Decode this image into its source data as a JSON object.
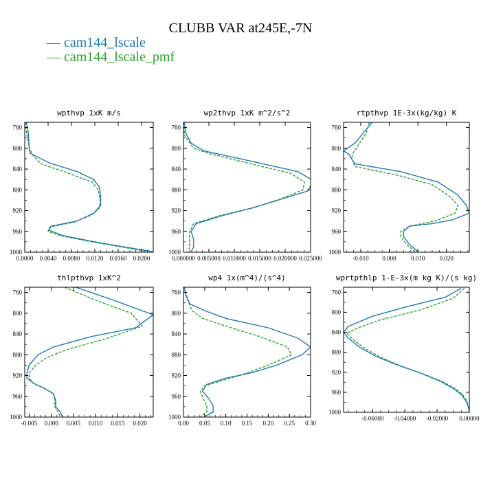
{
  "title": "CLUBB VAR at245E,-7N",
  "legend": [
    {
      "label": "cam144_lscale",
      "color": "#1f77b4"
    },
    {
      "label": "cam144_lscale_pmf",
      "color": "#2ca02c"
    }
  ],
  "chart_data": [
    {
      "type": "line",
      "title": "wpthvp  1xK m/s",
      "xlim": [
        0,
        0.022
      ],
      "xticks": [
        0,
        0.004,
        0.008,
        0.012,
        0.016,
        0.02
      ],
      "xtick_labels": [
        "0.0000",
        "0.0040",
        "0.0080",
        "0.0120",
        "0.0160",
        "0.0200"
      ],
      "ylim": [
        750,
        1000
      ],
      "yticks": [
        760,
        800,
        840,
        880,
        920,
        960,
        1000
      ],
      "series": [
        {
          "name": "cam144_lscale",
          "points": [
            [
              0.0003,
              750
            ],
            [
              0.0006,
              770
            ],
            [
              0.0008,
              805
            ],
            [
              0.001,
              810
            ],
            [
              0.0042,
              828
            ],
            [
              0.009,
              845
            ],
            [
              0.0118,
              860
            ],
            [
              0.0128,
              875
            ],
            [
              0.013,
              895
            ],
            [
              0.013,
              910
            ],
            [
              0.0118,
              925
            ],
            [
              0.009,
              940
            ],
            [
              0.0045,
              950
            ],
            [
              0.0042,
              958
            ],
            [
              0.0065,
              968
            ],
            [
              0.011,
              978
            ],
            [
              0.016,
              988
            ],
            [
              0.022,
              999
            ]
          ]
        },
        {
          "name": "cam144_lscale_pmf",
          "points": [
            [
              0.0001,
              750
            ],
            [
              0.0003,
              770
            ],
            [
              0.0008,
              800
            ],
            [
              0.0015,
              815
            ],
            [
              0.0028,
              830
            ],
            [
              0.0075,
              848
            ],
            [
              0.0115,
              865
            ],
            [
              0.0126,
              880
            ],
            [
              0.0129,
              900
            ],
            [
              0.0128,
              915
            ],
            [
              0.0115,
              928
            ],
            [
              0.0085,
              942
            ],
            [
              0.0042,
              952
            ],
            [
              0.004,
              960
            ],
            [
              0.006,
              968
            ],
            [
              0.0105,
              978
            ],
            [
              0.0155,
              988
            ],
            [
              0.021,
              999
            ]
          ]
        }
      ]
    },
    {
      "type": "line",
      "title": "wp2thvp  1xK m^2/s^2",
      "xlim": [
        0,
        0.025
      ],
      "xticks": [
        0,
        0.005,
        0.01,
        0.015,
        0.02,
        0.025
      ],
      "xtick_labels": [
        "0.000000",
        "0.005000",
        "0.010000",
        "0.015000",
        "0.020000",
        "0.025000"
      ],
      "ylim": [
        750,
        1000
      ],
      "yticks": [
        760,
        800,
        840,
        880,
        920,
        960,
        1000
      ],
      "series": [
        {
          "name": "cam144_lscale",
          "points": [
            [
              0.0002,
              750
            ],
            [
              0.0004,
              770
            ],
            [
              0.0015,
              790
            ],
            [
              0.004,
              805
            ],
            [
              0.012,
              822
            ],
            [
              0.0225,
              845
            ],
            [
              0.0255,
              862
            ],
            [
              0.0245,
              882
            ],
            [
              0.0185,
              900
            ],
            [
              0.0135,
              915
            ],
            [
              0.0075,
              930
            ],
            [
              0.0025,
              945
            ],
            [
              0.0015,
              960
            ],
            [
              0.002,
              975
            ],
            [
              0.002,
              990
            ],
            [
              0.0015,
              999
            ]
          ]
        },
        {
          "name": "cam144_lscale_pmf",
          "points": [
            [
              0.0001,
              750
            ],
            [
              0.0002,
              775
            ],
            [
              0.002,
              800
            ],
            [
              0.005,
              810
            ],
            [
              0.0125,
              828
            ],
            [
              0.021,
              848
            ],
            [
              0.0238,
              865
            ],
            [
              0.0235,
              880
            ],
            [
              0.019,
              898
            ],
            [
              0.0135,
              915
            ],
            [
              0.007,
              930
            ],
            [
              0.002,
              945
            ],
            [
              0.0012,
              960
            ],
            [
              0.0012,
              975
            ],
            [
              0.0012,
              990
            ],
            [
              0.001,
              999
            ]
          ]
        }
      ]
    },
    {
      "type": "line",
      "title": "rtpthvp  1E-3x(kg/kg) K",
      "xlim": [
        -0.016,
        0.028
      ],
      "xticks": [
        -0.01,
        0,
        0.01,
        0.02
      ],
      "xtick_labels": [
        "-0.010",
        "0.000",
        "0.010",
        "0.020"
      ],
      "ylim": [
        750,
        1000
      ],
      "yticks": [
        760,
        800,
        840,
        880,
        920,
        960,
        1000
      ],
      "series": [
        {
          "name": "cam144_lscale",
          "points": [
            [
              -0.006,
              750
            ],
            [
              -0.009,
              770
            ],
            [
              -0.012,
              790
            ],
            [
              -0.016,
              805
            ],
            [
              -0.014,
              812
            ],
            [
              -0.013,
              822
            ],
            [
              -0.012,
              830
            ],
            [
              0.004,
              845
            ],
            [
              0.017,
              865
            ],
            [
              0.024,
              890
            ],
            [
              0.027,
              910
            ],
            [
              0.028,
              925
            ],
            [
              0.022,
              938
            ],
            [
              0.015,
              945
            ],
            [
              0.007,
              950
            ],
            [
              0.005,
              960
            ],
            [
              0.005,
              970
            ],
            [
              0.007,
              985
            ],
            [
              0.01,
              999
            ]
          ]
        },
        {
          "name": "cam144_lscale_pmf",
          "points": [
            [
              -0.007,
              750
            ],
            [
              -0.008,
              770
            ],
            [
              -0.011,
              795
            ],
            [
              -0.013,
              812
            ],
            [
              -0.013,
              822
            ],
            [
              -0.012,
              835
            ],
            [
              0.003,
              852
            ],
            [
              0.015,
              870
            ],
            [
              0.021,
              892
            ],
            [
              0.024,
              910
            ],
            [
              0.023,
              925
            ],
            [
              0.016,
              940
            ],
            [
              0.007,
              950
            ],
            [
              0.004,
              960
            ],
            [
              0.004,
              970
            ],
            [
              0.006,
              985
            ],
            [
              0.009,
              999
            ]
          ]
        }
      ]
    },
    {
      "type": "line",
      "title": "thlpthvp  1xK^2",
      "xlim": [
        -0.006,
        0.023
      ],
      "xticks": [
        -0.005,
        0,
        0.005,
        0.01,
        0.015,
        0.02
      ],
      "xtick_labels": [
        "-0.005",
        "0.000",
        "0.005",
        "0.010",
        "0.015",
        "0.020"
      ],
      "ylim": [
        750,
        1000
      ],
      "yticks": [
        760,
        800,
        840,
        880,
        920,
        960,
        1000
      ],
      "series": [
        {
          "name": "cam144_lscale",
          "points": [
            [
              0.0055,
              750
            ],
            [
              0.014,
              775
            ],
            [
              0.023,
              803
            ],
            [
              0.019,
              828
            ],
            [
              0.009,
              845
            ],
            [
              0.0005,
              865
            ],
            [
              -0.003,
              880
            ],
            [
              -0.005,
              900
            ],
            [
              -0.0055,
              915
            ],
            [
              -0.0055,
              925
            ],
            [
              -0.004,
              935
            ],
            [
              -0.0015,
              945
            ],
            [
              0.0005,
              955
            ],
            [
              0.001,
              968
            ],
            [
              0.001,
              980
            ],
            [
              0.002,
              990
            ],
            [
              0.0025,
              999
            ]
          ]
        },
        {
          "name": "cam144_lscale_pmf",
          "points": [
            [
              0.003,
              750
            ],
            [
              0.01,
              775
            ],
            [
              0.018,
              800
            ],
            [
              0.0205,
              825
            ],
            [
              0.012,
              850
            ],
            [
              0.0035,
              870
            ],
            [
              -0.001,
              885
            ],
            [
              -0.0035,
              900
            ],
            [
              -0.005,
              915
            ],
            [
              -0.005,
              925
            ],
            [
              -0.004,
              935
            ],
            [
              -0.0015,
              945
            ],
            [
              0.0005,
              955
            ],
            [
              0.0008,
              968
            ],
            [
              0.0008,
              980
            ],
            [
              0.0015,
              990
            ],
            [
              0.002,
              999
            ]
          ]
        }
      ]
    },
    {
      "type": "line",
      "title": "wp4  1x(m^4)/(s^4)",
      "xlim": [
        0,
        0.3
      ],
      "xticks": [
        0,
        0.05,
        0.1,
        0.15,
        0.2,
        0.25,
        0.3
      ],
      "xtick_labels": [
        "0.00",
        "0.05",
        "0.10",
        "0.15",
        "0.20",
        "0.25",
        "0.30"
      ],
      "ylim": [
        750,
        1000
      ],
      "yticks": [
        760,
        800,
        840,
        880,
        920,
        960,
        1000
      ],
      "series": [
        {
          "name": "cam144_lscale",
          "points": [
            [
              0.002,
              750
            ],
            [
              0.005,
              765
            ],
            [
              0.015,
              782
            ],
            [
              0.05,
              795
            ],
            [
              0.1,
              810
            ],
            [
              0.2,
              828
            ],
            [
              0.27,
              848
            ],
            [
              0.3,
              865
            ],
            [
              0.28,
              880
            ],
            [
              0.22,
              900
            ],
            [
              0.16,
              915
            ],
            [
              0.1,
              925
            ],
            [
              0.055,
              937
            ],
            [
              0.045,
              950
            ],
            [
              0.06,
              965
            ],
            [
              0.07,
              978
            ],
            [
              0.07,
              990
            ],
            [
              0.05,
              999
            ]
          ]
        },
        {
          "name": "cam144_lscale_pmf",
          "points": [
            [
              0.002,
              750
            ],
            [
              0.01,
              775
            ],
            [
              0.02,
              795
            ],
            [
              0.045,
              810
            ],
            [
              0.1,
              825
            ],
            [
              0.18,
              845
            ],
            [
              0.245,
              865
            ],
            [
              0.255,
              880
            ],
            [
              0.2,
              900
            ],
            [
              0.14,
              918
            ],
            [
              0.09,
              930
            ],
            [
              0.05,
              940
            ],
            [
              0.04,
              950
            ],
            [
              0.045,
              962
            ],
            [
              0.055,
              978
            ],
            [
              0.055,
              990
            ],
            [
              0.04,
              999
            ]
          ]
        }
      ]
    },
    {
      "type": "line",
      "title": "wprtpthlp  1-E-3x(m kg K)/(s kg)",
      "xlim": [
        -0.078,
        0
      ],
      "xticks": [
        -0.06,
        -0.04,
        -0.02,
        0
      ],
      "xtick_labels": [
        "-0.06000",
        "-0.04000",
        "-0.02000",
        "0.00000"
      ],
      "ylim": [
        750,
        1000
      ],
      "yticks": [
        760,
        800,
        840,
        880,
        920,
        960,
        1000
      ],
      "series": [
        {
          "name": "cam144_lscale",
          "points": [
            [
              -0.005,
              752
            ],
            [
              -0.015,
              770
            ],
            [
              -0.04,
              790
            ],
            [
              -0.06,
              808
            ],
            [
              -0.075,
              828
            ],
            [
              -0.078,
              840
            ],
            [
              -0.075,
              852
            ],
            [
              -0.068,
              870
            ],
            [
              -0.058,
              888
            ],
            [
              -0.045,
              905
            ],
            [
              -0.03,
              922
            ],
            [
              -0.018,
              938
            ],
            [
              -0.01,
              952
            ],
            [
              -0.005,
              965
            ],
            [
              -0.002,
              978
            ],
            [
              -0.0005,
              990
            ],
            [
              0,
              999
            ]
          ]
        },
        {
          "name": "cam144_lscale_pmf",
          "points": [
            [
              -0.003,
              752
            ],
            [
              -0.01,
              772
            ],
            [
              -0.03,
              795
            ],
            [
              -0.055,
              815
            ],
            [
              -0.068,
              830
            ],
            [
              -0.076,
              842
            ],
            [
              -0.072,
              855
            ],
            [
              -0.065,
              872
            ],
            [
              -0.055,
              890
            ],
            [
              -0.043,
              907
            ],
            [
              -0.029,
              923
            ],
            [
              -0.017,
              938
            ],
            [
              -0.009,
              952
            ],
            [
              -0.004,
              965
            ],
            [
              -0.0015,
              978
            ],
            [
              -0.0004,
              990
            ],
            [
              0,
              999
            ]
          ]
        }
      ]
    }
  ]
}
